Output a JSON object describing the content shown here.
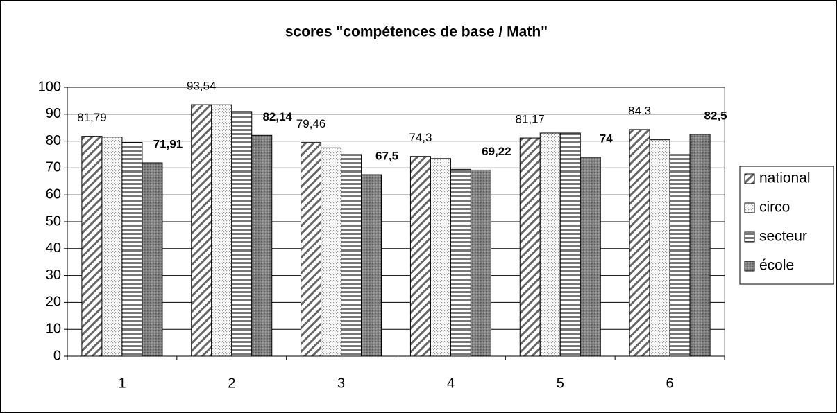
{
  "chart_data": {
    "type": "bar",
    "title": "scores \"compétences de base / Math\"",
    "categories": [
      "1",
      "2",
      "3",
      "4",
      "5",
      "6"
    ],
    "series": [
      {
        "name": "national",
        "color": "#ffffff",
        "pattern": "diagonal",
        "values": [
          81.79,
          93.54,
          79.46,
          74.3,
          81.17,
          84.3
        ],
        "value_labels": [
          "81,79",
          "93,54",
          "79,46",
          "74,3",
          "81,17",
          "84,3"
        ]
      },
      {
        "name": "circo",
        "color": "#ffffff",
        "pattern": "dots",
        "values": [
          81.5,
          93.5,
          77.5,
          73.5,
          83,
          80.5
        ]
      },
      {
        "name": "secteur",
        "color": "#ffffff",
        "pattern": "horizontal",
        "values": [
          79.5,
          91,
          75,
          69.5,
          83,
          75
        ]
      },
      {
        "name": "école",
        "color": "#808080",
        "pattern": "darkdots",
        "values": [
          71.91,
          82.14,
          67.5,
          69.22,
          74,
          82.5
        ],
        "value_labels": [
          "71,91",
          "82,14",
          "67,5",
          "69,22",
          "74",
          "82,5"
        ]
      }
    ],
    "ylim": [
      0,
      100
    ],
    "yticks": [
      0,
      10,
      20,
      30,
      40,
      50,
      60,
      70,
      80,
      90,
      100
    ],
    "grid": true,
    "legend": "right"
  }
}
